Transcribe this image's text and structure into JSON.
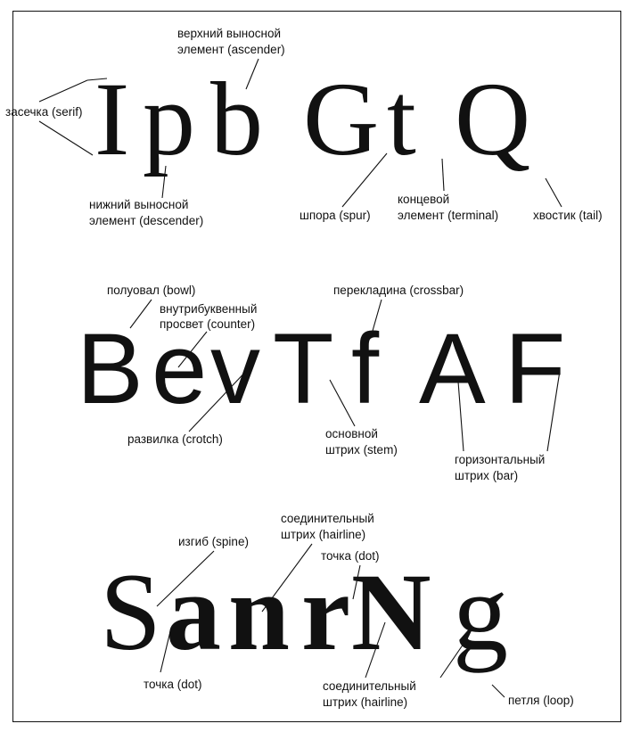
{
  "row1": {
    "letters": [
      "I",
      "p",
      "b",
      "G",
      "t",
      "Q"
    ],
    "labels": {
      "ascender_1": "верхний выносной",
      "ascender_2": "элемент (ascender)",
      "serif": "засечка (serif)",
      "descender_1": "нижний выносной",
      "descender_2": "элемент (descender)",
      "spur": "шпора (spur)",
      "terminal_1": "концевой",
      "terminal_2": "элемент (terminal)",
      "tail": "хвостик (tail)"
    }
  },
  "row2": {
    "letters": [
      "B",
      "e",
      "v",
      "T",
      "f",
      "A",
      "F"
    ],
    "labels": {
      "bowl": "полуовал (bowl)",
      "counter_1": "внутрибуквенный",
      "counter_2": "просвет (counter)",
      "crossbar": "перекладина (crossbar)",
      "crotch": "развилка (crotch)",
      "stem_1": "основной",
      "stem_2": "штрих (stem)",
      "bar_1": "горизонтальный",
      "bar_2": "штрих (bar)"
    }
  },
  "row3": {
    "letters": [
      "S",
      "a",
      "n",
      "r",
      "N",
      "g"
    ],
    "labels": {
      "spine": "изгиб (spine)",
      "hairline_top_1": "соединительный",
      "hairline_top_2": "штрих (hairline)",
      "dot_top": "точка (dot)",
      "dot_bottom": "точка (dot)",
      "hairline_bottom_1": "соединительный",
      "hairline_bottom_2": "штрих (hairline)",
      "loop": "петля (loop)"
    }
  }
}
